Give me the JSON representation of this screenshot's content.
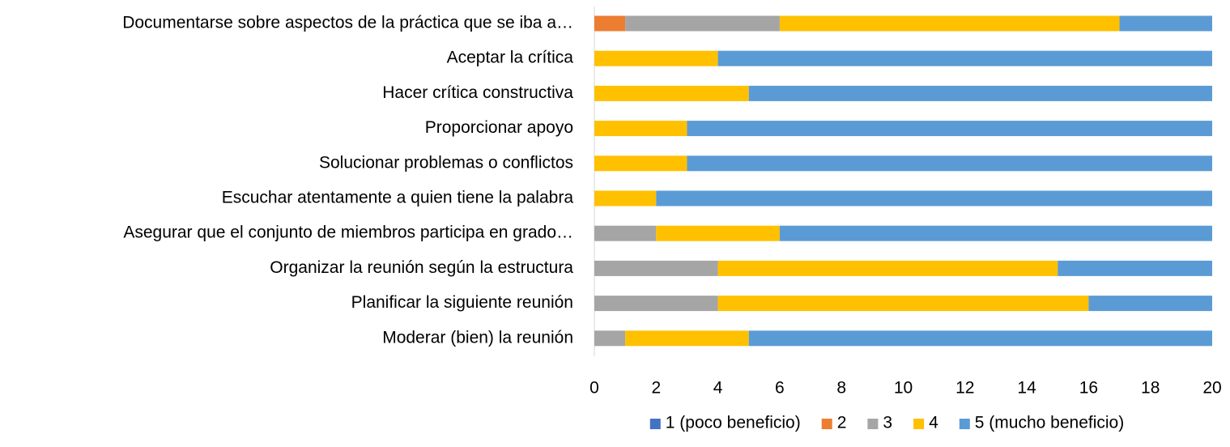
{
  "chart_data": {
    "type": "stacked_bar_horizontal",
    "categories": [
      "Documentarse sobre aspectos de la práctica que se iba a…",
      "Aceptar la crítica",
      "Hacer crítica constructiva",
      "Proporcionar apoyo",
      "Solucionar problemas o conflictos",
      "Escuchar atentamente a quien tiene la palabra",
      "Asegurar que el conjunto de miembros participa en grado…",
      "Organizar la reunión según la estructura",
      "Planificar la siguiente reunión",
      "Moderar (bien) la reunión"
    ],
    "series": [
      {
        "name": "1 (poco beneficio)",
        "color": "#4472c4",
        "values": [
          0,
          0,
          0,
          0,
          0,
          0,
          0,
          0,
          0,
          0
        ]
      },
      {
        "name": "2",
        "color": "#ed7d31",
        "values": [
          1,
          0,
          0,
          0,
          0,
          0,
          0,
          0,
          0,
          0
        ]
      },
      {
        "name": "3",
        "color": "#a5a5a5",
        "values": [
          5,
          0,
          0,
          0,
          0,
          0,
          2,
          4,
          4,
          1
        ]
      },
      {
        "name": "4",
        "color": "#ffc000",
        "values": [
          11,
          4,
          5,
          3,
          3,
          2,
          4,
          11,
          12,
          4
        ]
      },
      {
        "name": "5 (mucho beneficio)",
        "color": "#5b9bd5",
        "values": [
          3,
          16,
          15,
          17,
          17,
          18,
          14,
          5,
          4,
          15
        ]
      }
    ],
    "xlim": [
      0,
      20
    ],
    "xticks": [
      0,
      2,
      4,
      6,
      8,
      10,
      12,
      14,
      16,
      18,
      20
    ],
    "legend": "bottom"
  }
}
